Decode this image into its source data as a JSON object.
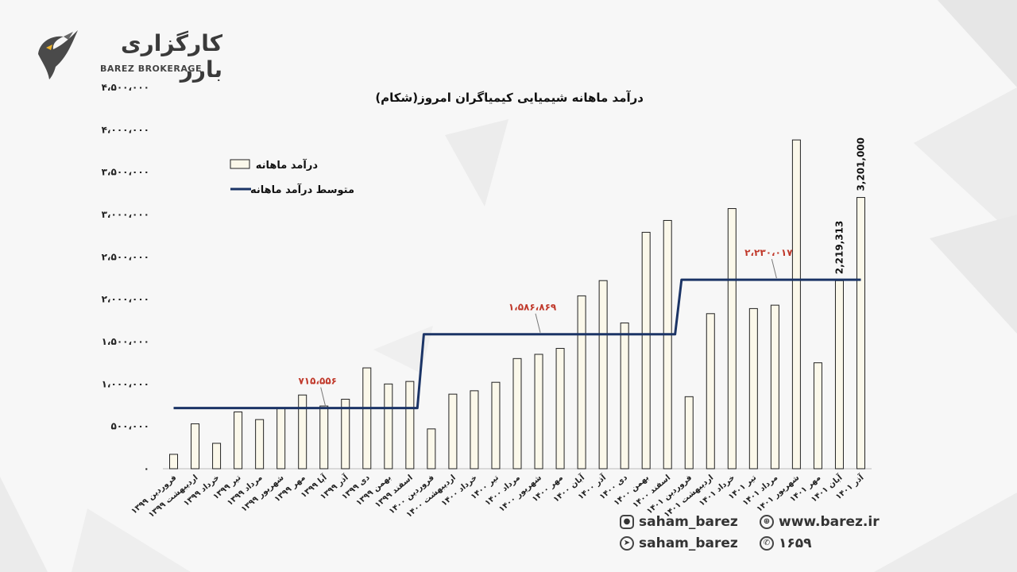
{
  "brand": {
    "name_fa": "کارگزاری بارز",
    "name_en": "BAREZ BROKERAGE"
  },
  "chart_data": {
    "type": "bar",
    "title": "درآمد ماهانه  شیمیایی کیمیاگران امروز(شکام)",
    "xlabel": "",
    "ylabel": "",
    "ylim": [
      0,
      4500000
    ],
    "ytick_values": [
      0,
      500000,
      1000000,
      1500000,
      2000000,
      2500000,
      3000000,
      3500000,
      4000000,
      4500000
    ],
    "ytick_labels": [
      "۰",
      "۵۰۰،۰۰۰",
      "۱،۰۰۰،۰۰۰",
      "۱،۵۰۰،۰۰۰",
      "۲،۰۰۰،۰۰۰",
      "۲،۵۰۰،۰۰۰",
      "۳،۰۰۰،۰۰۰",
      "۳،۵۰۰،۰۰۰",
      "۴،۰۰۰،۰۰۰",
      "۴،۵۰۰،۰۰۰"
    ],
    "categories": [
      "فروردین ۱۳۹۹",
      "اردیبهشت ۱۳۹۹",
      "خرداد ۱۳۹۹",
      "تیر ۱۳۹۹",
      "مرداد ۱۳۹۹",
      "شهریور ۱۳۹۹",
      "مهر ۱۳۹۹",
      "آبا ۱۳۹۹",
      "آذر ۱۳۹۹",
      "دی ۱۳۹۹",
      "بهمن ۱۳۹۹",
      "اسفند ۱۳۹۹",
      "فروردین ۱۴۰۰",
      "اردیبهشت ۱۴۰۰",
      "خرداد ۱۴۰۰",
      "تیر ۱۴۰۰",
      "مرداد ۱۴۰۰",
      "شهریور ۱۴۰۰",
      "مهر ۱۴۰۰",
      "آبان ۱۴۰۰",
      "آذر ۱۴۰۰",
      "دی ۱۴۰۰",
      "بهمن ۱۴۰۰",
      "اسفند ۱۴۰۰",
      "فروردین ۱۴۰۱",
      "اردیبهشت ۱۴۰۱",
      "خرداد ۱۴۰۱",
      "تیر ۱۴۰۱",
      "مرداد ۱۴۰۱",
      "شهریور ۱۴۰۱",
      "مهر ۱۴۰۱",
      "آبان ۱۴۰۱",
      "آذر ۱۴۰۱"
    ],
    "series": [
      {
        "name": "درآمد ماهانه",
        "type": "bar",
        "color": "#fbf8ea",
        "values": [
          170000,
          530000,
          300000,
          670000,
          580000,
          720000,
          870000,
          740000,
          820000,
          1190000,
          1000000,
          1030000,
          470000,
          880000,
          920000,
          1020000,
          1300000,
          1350000,
          1420000,
          2040000,
          2220000,
          1720000,
          2790000,
          2930000,
          850000,
          1830000,
          3070000,
          1890000,
          1930000,
          3880000,
          1250000,
          2219313,
          3201000
        ]
      },
      {
        "name": "متوسط درآمد ماهانه",
        "type": "step-line",
        "color": "#1b3466",
        "values": [
          715556,
          715556,
          715556,
          715556,
          715556,
          715556,
          715556,
          715556,
          715556,
          715556,
          715556,
          715556,
          1586869,
          1586869,
          1586869,
          1586869,
          1586869,
          1586869,
          1586869,
          1586869,
          1586869,
          1586869,
          1586869,
          1586869,
          2230017,
          2230017,
          2230017,
          2230017,
          2230017,
          2230017,
          2230017,
          2230017,
          2230017
        ]
      }
    ],
    "annotations": [
      {
        "text": "۷۱۵،۵۵۶",
        "color": "#c0392b",
        "category_index": 7
      },
      {
        "text": "۱،۵۸۶،۸۶۹",
        "color": "#c0392b",
        "category_index": 17
      },
      {
        "text": "۲،۲۳۰،۰۱۷",
        "color": "#c0392b",
        "category_index": 28
      }
    ],
    "data_labels": [
      {
        "text": "2,219,313",
        "category_index": 31
      },
      {
        "text": "3,201,000",
        "category_index": 32
      }
    ],
    "grid": false,
    "legend": "top-left"
  },
  "footer": {
    "instagram": "saham_barez",
    "telegram": "saham_barez",
    "website": "www.barez.ir",
    "phone": "۱۶۵۹"
  }
}
